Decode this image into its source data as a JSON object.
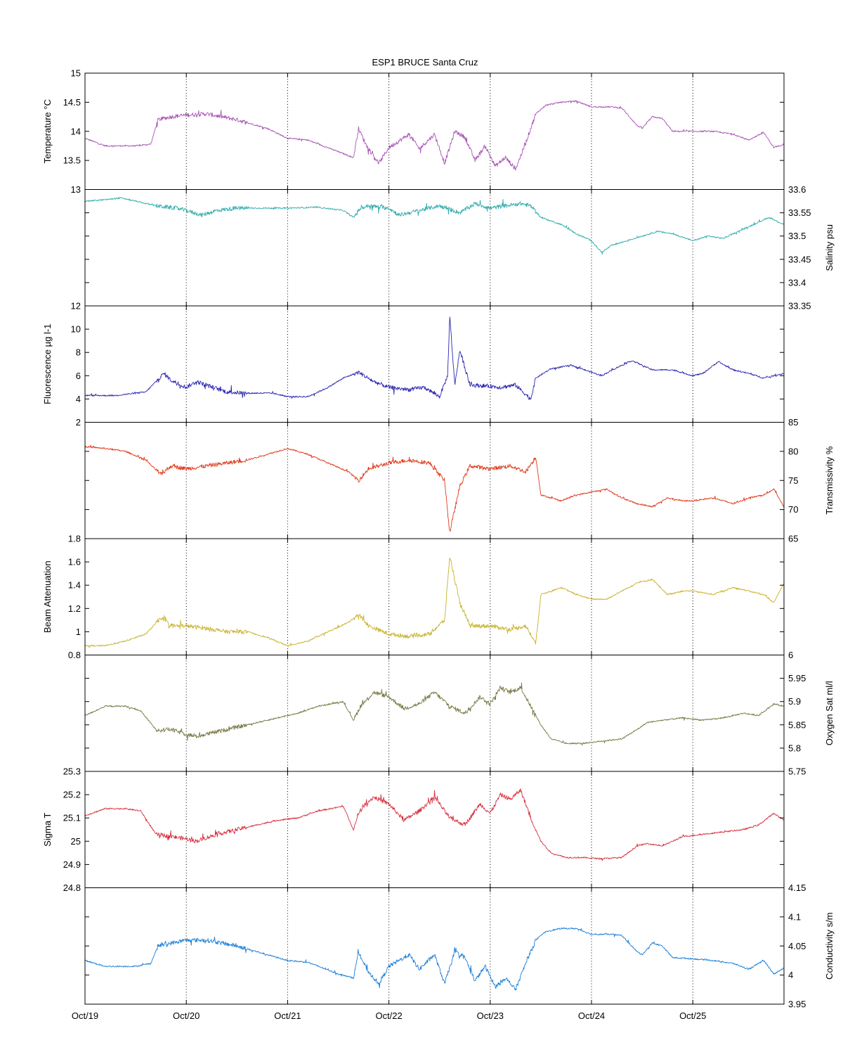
{
  "chart_data": {
    "type": "line",
    "title": "ESP1 BRUCE Santa Cruz",
    "x_ticks": [
      "Oct/19",
      "Oct/20",
      "Oct/21",
      "Oct/22",
      "Oct/23",
      "Oct/24",
      "Oct/25"
    ],
    "x_range_days": [
      19,
      25.9
    ],
    "grid": "vertical dotted at each day",
    "panels": [
      {
        "ylabel": "Temperature °C",
        "axis_side": "left",
        "color": "#a855b5",
        "ylim": [
          13,
          15
        ],
        "yticks": [
          13,
          13.5,
          14,
          14.5,
          15
        ],
        "tick_labels": [
          "13",
          "13.5",
          "14",
          "14.5",
          "15"
        ],
        "x": [
          19.0,
          19.2,
          19.5,
          19.65,
          19.72,
          19.85,
          20.0,
          20.2,
          20.5,
          20.8,
          21.0,
          21.2,
          21.5,
          21.65,
          21.7,
          21.78,
          21.9,
          22.0,
          22.2,
          22.3,
          22.45,
          22.55,
          22.65,
          22.75,
          22.85,
          22.95,
          23.05,
          23.15,
          23.25,
          23.35,
          23.45,
          23.55,
          23.7,
          23.85,
          24.0,
          24.2,
          24.3,
          24.45,
          24.5,
          24.6,
          24.7,
          24.8,
          25.0,
          25.2,
          25.4,
          25.55,
          25.7,
          25.8,
          25.9
        ],
        "y": [
          13.88,
          13.75,
          13.75,
          13.78,
          14.2,
          14.25,
          14.28,
          14.3,
          14.2,
          14.05,
          13.88,
          13.85,
          13.65,
          13.55,
          14.05,
          13.75,
          13.45,
          13.72,
          13.95,
          13.7,
          13.95,
          13.45,
          14.0,
          13.9,
          13.5,
          13.75,
          13.4,
          13.55,
          13.35,
          13.8,
          14.3,
          14.45,
          14.5,
          14.52,
          14.42,
          14.42,
          14.4,
          14.1,
          14.05,
          14.25,
          14.22,
          14.0,
          14.0,
          14.0,
          13.95,
          13.85,
          13.98,
          13.72,
          13.78
        ]
      },
      {
        "ylabel": "Salinity psu",
        "axis_side": "right",
        "color": "#33adad",
        "ylim": [
          33.35,
          33.6
        ],
        "yticks": [
          33.35,
          33.4,
          33.45,
          33.5,
          33.55,
          33.6
        ],
        "tick_labels": [
          "33.35",
          "33.4",
          "33.45",
          "33.5",
          "33.55",
          "33.6"
        ],
        "x": [
          19.0,
          19.2,
          19.35,
          19.5,
          19.7,
          19.9,
          20.0,
          20.15,
          20.3,
          20.5,
          20.8,
          21.0,
          21.3,
          21.55,
          21.65,
          21.72,
          21.8,
          22.0,
          22.1,
          22.3,
          22.5,
          22.7,
          22.85,
          23.0,
          23.15,
          23.3,
          23.4,
          23.5,
          23.7,
          23.85,
          24.0,
          24.1,
          24.2,
          24.35,
          24.5,
          24.65,
          24.8,
          25.0,
          25.15,
          25.3,
          25.5,
          25.65,
          25.75,
          25.9
        ],
        "y": [
          33.575,
          33.578,
          33.582,
          33.575,
          33.565,
          33.56,
          33.555,
          33.545,
          33.555,
          33.56,
          33.56,
          33.56,
          33.562,
          33.555,
          33.54,
          33.56,
          33.565,
          33.56,
          33.545,
          33.555,
          33.565,
          33.55,
          33.57,
          33.56,
          33.565,
          33.57,
          33.565,
          33.54,
          33.525,
          33.505,
          33.49,
          33.465,
          33.48,
          33.49,
          33.5,
          33.51,
          33.505,
          33.49,
          33.5,
          33.495,
          33.515,
          33.53,
          33.54,
          33.525
        ]
      },
      {
        "ylabel": "Fluorescence µg l-1",
        "axis_side": "left",
        "color": "#2c27b0",
        "ylim": [
          2,
          12
        ],
        "yticks": [
          2,
          4,
          6,
          8,
          10,
          12
        ],
        "tick_labels": [
          "2",
          "4",
          "6",
          "8",
          "10",
          "12"
        ],
        "x": [
          19.0,
          19.3,
          19.6,
          19.78,
          19.85,
          20.0,
          20.1,
          20.2,
          20.4,
          20.6,
          20.85,
          21.0,
          21.2,
          21.4,
          21.55,
          21.7,
          21.85,
          22.0,
          22.2,
          22.35,
          22.5,
          22.58,
          22.6,
          22.65,
          22.7,
          22.8,
          23.0,
          23.1,
          23.25,
          23.4,
          23.45,
          23.6,
          23.8,
          24.0,
          24.1,
          24.25,
          24.4,
          24.6,
          24.8,
          25.0,
          25.1,
          25.25,
          25.4,
          25.55,
          25.7,
          25.9
        ],
        "y": [
          4.3,
          4.3,
          4.6,
          6.2,
          5.6,
          5.0,
          5.5,
          5.2,
          4.6,
          4.5,
          4.5,
          4.2,
          4.2,
          5.0,
          5.8,
          6.3,
          5.5,
          5.0,
          4.8,
          5.0,
          4.2,
          6.0,
          11.2,
          5.2,
          8.2,
          5.2,
          5.1,
          5.0,
          5.2,
          4.0,
          5.8,
          6.6,
          6.9,
          6.3,
          6.0,
          6.7,
          7.3,
          6.5,
          6.5,
          6.0,
          6.2,
          7.2,
          6.5,
          6.2,
          5.8,
          6.2
        ]
      },
      {
        "ylabel": "Transmissivity %",
        "axis_side": "right",
        "color": "#de3a1b",
        "ylim": [
          65,
          85
        ],
        "yticks": [
          65,
          70,
          75,
          80,
          85
        ],
        "tick_labels": [
          "65",
          "70",
          "75",
          "80",
          "85"
        ],
        "x": [
          19.0,
          19.2,
          19.4,
          19.6,
          19.75,
          19.85,
          20.0,
          20.2,
          20.4,
          20.6,
          20.8,
          21.0,
          21.2,
          21.4,
          21.6,
          21.7,
          21.8,
          22.0,
          22.2,
          22.4,
          22.55,
          22.6,
          22.7,
          22.8,
          23.0,
          23.2,
          23.35,
          23.45,
          23.5,
          23.7,
          23.85,
          24.0,
          24.15,
          24.3,
          24.45,
          24.6,
          24.75,
          24.9,
          25.0,
          25.2,
          25.4,
          25.55,
          25.7,
          25.8,
          25.9
        ],
        "y": [
          80.8,
          80.5,
          80.0,
          78.5,
          76.0,
          77.5,
          77.0,
          77.5,
          78.0,
          78.5,
          79.5,
          80.5,
          79.5,
          78.0,
          76.5,
          75.0,
          77.0,
          78.0,
          78.5,
          78.0,
          75.0,
          66.0,
          74.0,
          77.5,
          77.0,
          77.5,
          76.5,
          79.0,
          72.5,
          71.5,
          72.5,
          73.0,
          73.5,
          72.0,
          71.0,
          70.5,
          72.0,
          71.5,
          71.5,
          72.0,
          71.0,
          72.0,
          72.5,
          73.5,
          70.5
        ]
      },
      {
        "ylabel": "Beam Attenuation",
        "axis_side": "left",
        "color": "#c9b32e",
        "ylim": [
          0.8,
          1.8
        ],
        "yticks": [
          0.8,
          1.0,
          1.2,
          1.4,
          1.6,
          1.8
        ],
        "tick_labels": [
          "0.8",
          "1",
          "1.2",
          "1.4",
          "1.6",
          "1.8"
        ],
        "x": [
          19.0,
          19.2,
          19.4,
          19.6,
          19.75,
          19.85,
          20.0,
          20.2,
          20.4,
          20.6,
          20.8,
          21.0,
          21.2,
          21.4,
          21.6,
          21.7,
          21.8,
          22.0,
          22.2,
          22.4,
          22.55,
          22.6,
          22.7,
          22.8,
          23.0,
          23.2,
          23.35,
          23.45,
          23.5,
          23.7,
          23.85,
          24.0,
          24.15,
          24.3,
          24.45,
          24.6,
          24.75,
          24.9,
          25.0,
          25.2,
          25.4,
          25.55,
          25.7,
          25.8,
          25.9
        ],
        "y": [
          0.88,
          0.88,
          0.92,
          0.98,
          1.12,
          1.05,
          1.05,
          1.03,
          1.0,
          1.0,
          0.95,
          0.88,
          0.92,
          1.0,
          1.08,
          1.15,
          1.05,
          0.98,
          0.96,
          0.98,
          1.1,
          1.65,
          1.25,
          1.05,
          1.05,
          1.02,
          1.05,
          0.9,
          1.32,
          1.38,
          1.32,
          1.28,
          1.28,
          1.35,
          1.42,
          1.45,
          1.32,
          1.35,
          1.35,
          1.32,
          1.38,
          1.35,
          1.32,
          1.25,
          1.42
        ]
      },
      {
        "ylabel": "Oxygen Sat ml/l",
        "axis_side": "right",
        "color": "#7a7a48",
        "ylim": [
          5.75,
          6
        ],
        "yticks": [
          5.75,
          5.8,
          5.85,
          5.9,
          5.95,
          6
        ],
        "tick_labels": [
          "5.75",
          "5.8",
          "5.85",
          "5.9",
          "5.95",
          "6"
        ],
        "x": [
          19.0,
          19.2,
          19.4,
          19.55,
          19.7,
          19.85,
          20.0,
          20.1,
          20.3,
          20.6,
          20.9,
          21.1,
          21.3,
          21.55,
          21.65,
          21.72,
          21.85,
          22.0,
          22.15,
          22.3,
          22.45,
          22.6,
          22.75,
          22.9,
          23.0,
          23.1,
          23.2,
          23.3,
          23.4,
          23.5,
          23.6,
          23.75,
          23.9,
          24.1,
          24.3,
          24.45,
          24.55,
          24.7,
          24.9,
          25.1,
          25.3,
          25.5,
          25.65,
          25.8,
          25.9
        ],
        "y": [
          5.87,
          5.89,
          5.89,
          5.88,
          5.84,
          5.84,
          5.83,
          5.825,
          5.835,
          5.85,
          5.865,
          5.875,
          5.89,
          5.9,
          5.86,
          5.89,
          5.92,
          5.91,
          5.885,
          5.895,
          5.92,
          5.89,
          5.875,
          5.91,
          5.895,
          5.93,
          5.92,
          5.93,
          5.89,
          5.85,
          5.82,
          5.81,
          5.81,
          5.815,
          5.82,
          5.84,
          5.855,
          5.86,
          5.865,
          5.86,
          5.865,
          5.875,
          5.87,
          5.895,
          5.89
        ]
      },
      {
        "ylabel": "Sigma T",
        "axis_side": "left",
        "color": "#d6303f",
        "ylim": [
          24.8,
          25.3
        ],
        "yticks": [
          24.8,
          24.9,
          25.0,
          25.1,
          25.2,
          25.3
        ],
        "tick_labels": [
          "24.8",
          "24.9",
          "25",
          "25.1",
          "25.2",
          "25.3"
        ],
        "x": [
          19.0,
          19.2,
          19.4,
          19.55,
          19.7,
          19.85,
          20.0,
          20.1,
          20.3,
          20.6,
          20.9,
          21.1,
          21.3,
          21.55,
          21.65,
          21.72,
          21.85,
          22.0,
          22.15,
          22.3,
          22.45,
          22.6,
          22.75,
          22.9,
          23.0,
          23.1,
          23.2,
          23.3,
          23.4,
          23.5,
          23.6,
          23.75,
          23.9,
          24.1,
          24.3,
          24.45,
          24.55,
          24.7,
          24.9,
          25.1,
          25.3,
          25.5,
          25.65,
          25.8,
          25.9
        ],
        "y": [
          25.11,
          25.14,
          25.14,
          25.13,
          25.03,
          25.02,
          25.01,
          25.0,
          25.03,
          25.06,
          25.09,
          25.1,
          25.13,
          25.15,
          25.05,
          25.14,
          25.19,
          25.16,
          25.09,
          25.13,
          25.19,
          25.1,
          25.07,
          25.16,
          25.12,
          25.2,
          25.18,
          25.22,
          25.1,
          25.0,
          24.95,
          24.93,
          24.93,
          24.925,
          24.93,
          24.98,
          24.99,
          24.98,
          25.02,
          25.03,
          25.04,
          25.05,
          25.07,
          25.12,
          25.09
        ]
      },
      {
        "ylabel": "Conductivity s/m",
        "axis_side": "right",
        "color": "#1e7fd6",
        "ylim": [
          3.95,
          4.15
        ],
        "yticks": [
          3.95,
          4.0,
          4.05,
          4.1,
          4.15
        ],
        "tick_labels": [
          "3.95",
          "4",
          "4.05",
          "4.1",
          "4.15"
        ],
        "x": [
          19.0,
          19.2,
          19.5,
          19.65,
          19.72,
          19.85,
          20.0,
          20.2,
          20.5,
          20.8,
          21.0,
          21.2,
          21.5,
          21.65,
          21.7,
          21.78,
          21.9,
          22.0,
          22.2,
          22.3,
          22.45,
          22.55,
          22.65,
          22.75,
          22.85,
          22.95,
          23.05,
          23.15,
          23.25,
          23.35,
          23.45,
          23.55,
          23.7,
          23.85,
          24.0,
          24.2,
          24.3,
          24.45,
          24.5,
          24.6,
          24.7,
          24.8,
          25.0,
          25.2,
          25.4,
          25.55,
          25.7,
          25.8,
          25.9
        ],
        "y": [
          4.025,
          4.015,
          4.015,
          4.02,
          4.05,
          4.055,
          4.06,
          4.06,
          4.05,
          4.035,
          4.025,
          4.022,
          4.002,
          3.995,
          4.04,
          4.01,
          3.985,
          4.015,
          4.035,
          4.01,
          4.035,
          3.985,
          4.04,
          4.03,
          3.99,
          4.015,
          3.98,
          3.995,
          3.975,
          4.02,
          4.06,
          4.075,
          4.08,
          4.08,
          4.07,
          4.07,
          4.068,
          4.04,
          4.035,
          4.055,
          4.05,
          4.03,
          4.028,
          4.025,
          4.02,
          4.01,
          4.025,
          4.002,
          4.012
        ]
      }
    ]
  }
}
